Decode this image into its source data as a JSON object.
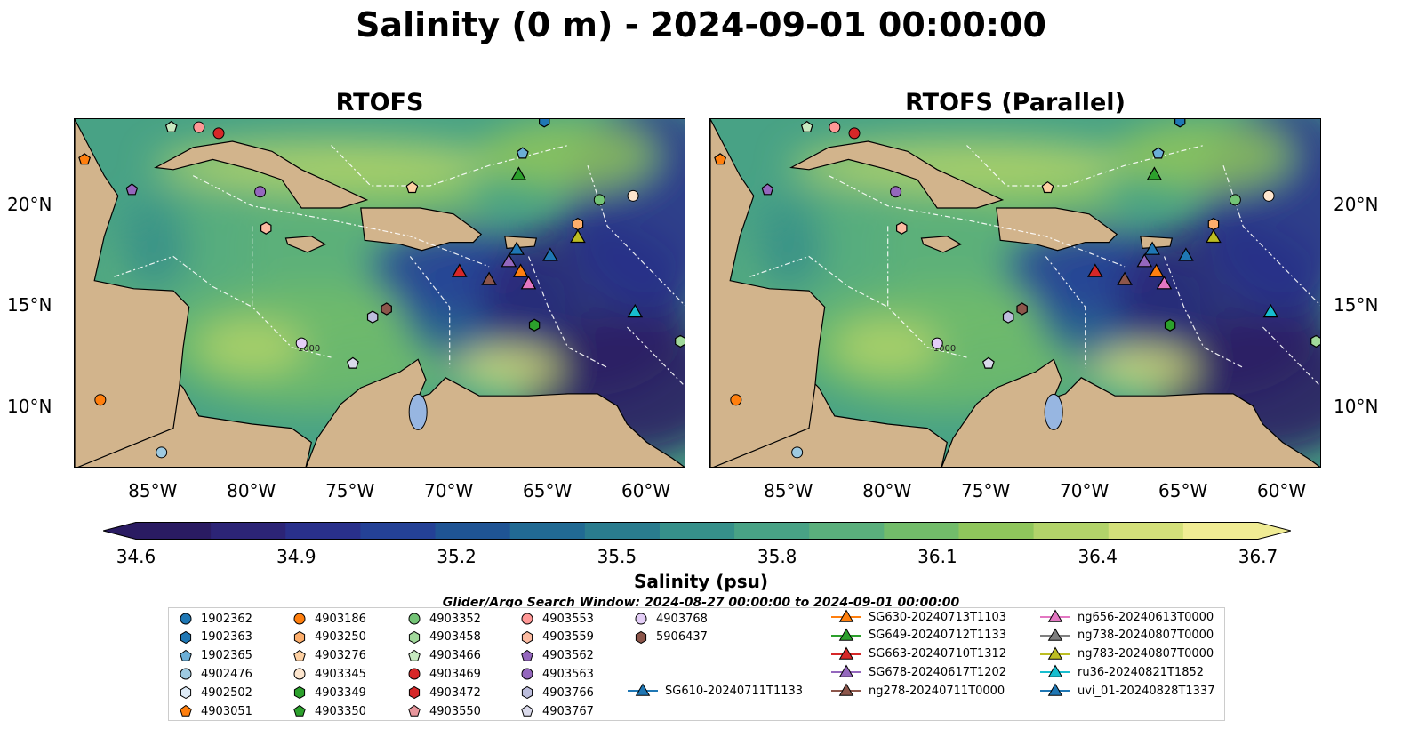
{
  "title": "Salinity (0 m) - 2024-09-01 00:00:00",
  "panels": [
    {
      "title": "RTOFS"
    },
    {
      "title": "RTOFS (Parallel)"
    }
  ],
  "chart_data": {
    "type": "heatmap",
    "title": "Salinity (0 m) - 2024-09-01 00:00:00",
    "x_ticks": [
      "85°W",
      "80°W",
      "75°W",
      "70°W",
      "65°W",
      "60°W"
    ],
    "y_ticks": [
      "20°N",
      "15°N",
      "10°N"
    ],
    "xlim": [
      -89,
      -58
    ],
    "ylim": [
      7,
      24.3
    ],
    "colorbar": {
      "label": "Salinity (psu)",
      "range": [
        34.6,
        36.7
      ],
      "ticks": [
        "34.6",
        "34.9",
        "35.2",
        "35.5",
        "35.8",
        "36.1",
        "36.4",
        "36.7"
      ],
      "colors": [
        "#2a1b62",
        "#2c2476",
        "#29308b",
        "#244196",
        "#1f5494",
        "#216a93",
        "#2a7c8e",
        "#36908a",
        "#48a285",
        "#5aaf7c",
        "#72bc6a",
        "#8fc65c",
        "#b2d36a",
        "#d3e07a",
        "#f0ec94"
      ]
    },
    "contour_label": "1000",
    "search_window": "Glider/Argo Search Window: 2024-08-27 00:00:00 to 2024-09-01 00:00:00",
    "argo_floats": [
      {
        "id": "1902362",
        "marker": "circle",
        "color": "#1f77b4"
      },
      {
        "id": "1902363",
        "marker": "hexagon",
        "color": "#1f77b4",
        "lon": -65.2,
        "lat": 24.2
      },
      {
        "id": "1902365",
        "marker": "pentagon",
        "color": "#6baed6",
        "lon": -66.3,
        "lat": 22.6
      },
      {
        "id": "4902476",
        "marker": "circle",
        "color": "#9ecae1",
        "lon": -84.6,
        "lat": 7.8
      },
      {
        "id": "4902502",
        "marker": "hexagon",
        "color": "#deebf7"
      },
      {
        "id": "4903051",
        "marker": "pentagon",
        "color": "#ff7f0e",
        "lon": -88.5,
        "lat": 22.3
      },
      {
        "id": "4903186",
        "marker": "circle",
        "color": "#ff7f0e",
        "lon": -87.7,
        "lat": 10.4
      },
      {
        "id": "4903250",
        "marker": "hexagon",
        "color": "#fdae6b",
        "lon": -63.5,
        "lat": 19.1
      },
      {
        "id": "4903276",
        "marker": "pentagon",
        "color": "#fdd0a2",
        "lon": -71.9,
        "lat": 20.9
      },
      {
        "id": "4903345",
        "marker": "circle",
        "color": "#fee6ce",
        "lon": -60.7,
        "lat": 20.5
      },
      {
        "id": "4903349",
        "marker": "hexagon",
        "color": "#2ca02c",
        "lon": -65.7,
        "lat": 14.1
      },
      {
        "id": "4903350",
        "marker": "pentagon",
        "color": "#2ca02c"
      },
      {
        "id": "4903352",
        "marker": "circle",
        "color": "#74c476",
        "lon": -62.4,
        "lat": 20.3
      },
      {
        "id": "4903458",
        "marker": "hexagon",
        "color": "#a1d99b",
        "lon": -58.3,
        "lat": 13.3
      },
      {
        "id": "4903466",
        "marker": "pentagon",
        "color": "#c7e9c0",
        "lon": -84.1,
        "lat": 23.9
      },
      {
        "id": "4903469",
        "marker": "circle",
        "color": "#d62728",
        "lon": -81.7,
        "lat": 23.6
      },
      {
        "id": "4903472",
        "marker": "hexagon",
        "color": "#d62728"
      },
      {
        "id": "4903550",
        "marker": "pentagon",
        "color": "#e7969c"
      },
      {
        "id": "4903553",
        "marker": "circle",
        "color": "#ff9896",
        "lon": -82.7,
        "lat": 23.9
      },
      {
        "id": "4903559",
        "marker": "hexagon",
        "color": "#fcbba1",
        "lon": -79.3,
        "lat": 18.9
      },
      {
        "id": "4903562",
        "marker": "pentagon",
        "color": "#9467bd",
        "lon": -86.1,
        "lat": 20.8
      },
      {
        "id": "4903563",
        "marker": "circle",
        "color": "#9467bd",
        "lon": -79.6,
        "lat": 20.7
      },
      {
        "id": "4903766",
        "marker": "hexagon",
        "color": "#bcbddc",
        "lon": -73.9,
        "lat": 14.5
      },
      {
        "id": "4903767",
        "marker": "pentagon",
        "color": "#dadaeb",
        "lon": -74.9,
        "lat": 12.2
      },
      {
        "id": "4903768",
        "marker": "circle",
        "color": "#e4cef7",
        "lon": -77.5,
        "lat": 13.2
      },
      {
        "id": "5906437",
        "marker": "hexagon",
        "color": "#8c564b",
        "lon": -73.2,
        "lat": 14.9
      }
    ],
    "gliders": [
      {
        "id": "SG610-20240711T1133",
        "color": "#1f77b4",
        "lon": -64.9,
        "lat": 17.5
      },
      {
        "id": "SG630-20240713T1103",
        "color": "#ff7f0e",
        "lon": -66.4,
        "lat": 16.7
      },
      {
        "id": "SG649-20240712T1133",
        "color": "#2ca02c",
        "lon": -66.5,
        "lat": 21.5
      },
      {
        "id": "SG663-20240710T1312",
        "color": "#d62728",
        "lon": -69.5,
        "lat": 16.7
      },
      {
        "id": "SG678-20240617T1202",
        "color": "#9467bd",
        "lon": -67.0,
        "lat": 17.2
      },
      {
        "id": "ng278-20240711T0000",
        "color": "#8c564b",
        "lon": -68.0,
        "lat": 16.3
      },
      {
        "id": "ng656-20240613T0000",
        "color": "#e377c2",
        "lon": -66.0,
        "lat": 16.1
      },
      {
        "id": "ng738-20240807T0000",
        "color": "#7f7f7f"
      },
      {
        "id": "ng783-20240807T0000",
        "color": "#bcbd22",
        "lon": -63.5,
        "lat": 18.4
      },
      {
        "id": "ru36-20240821T1852",
        "color": "#17becf",
        "lon": -60.6,
        "lat": 14.7
      },
      {
        "id": "uvi_01-20240828T1337",
        "color": "#1f77b4",
        "lon": -66.6,
        "lat": 17.8
      }
    ]
  }
}
